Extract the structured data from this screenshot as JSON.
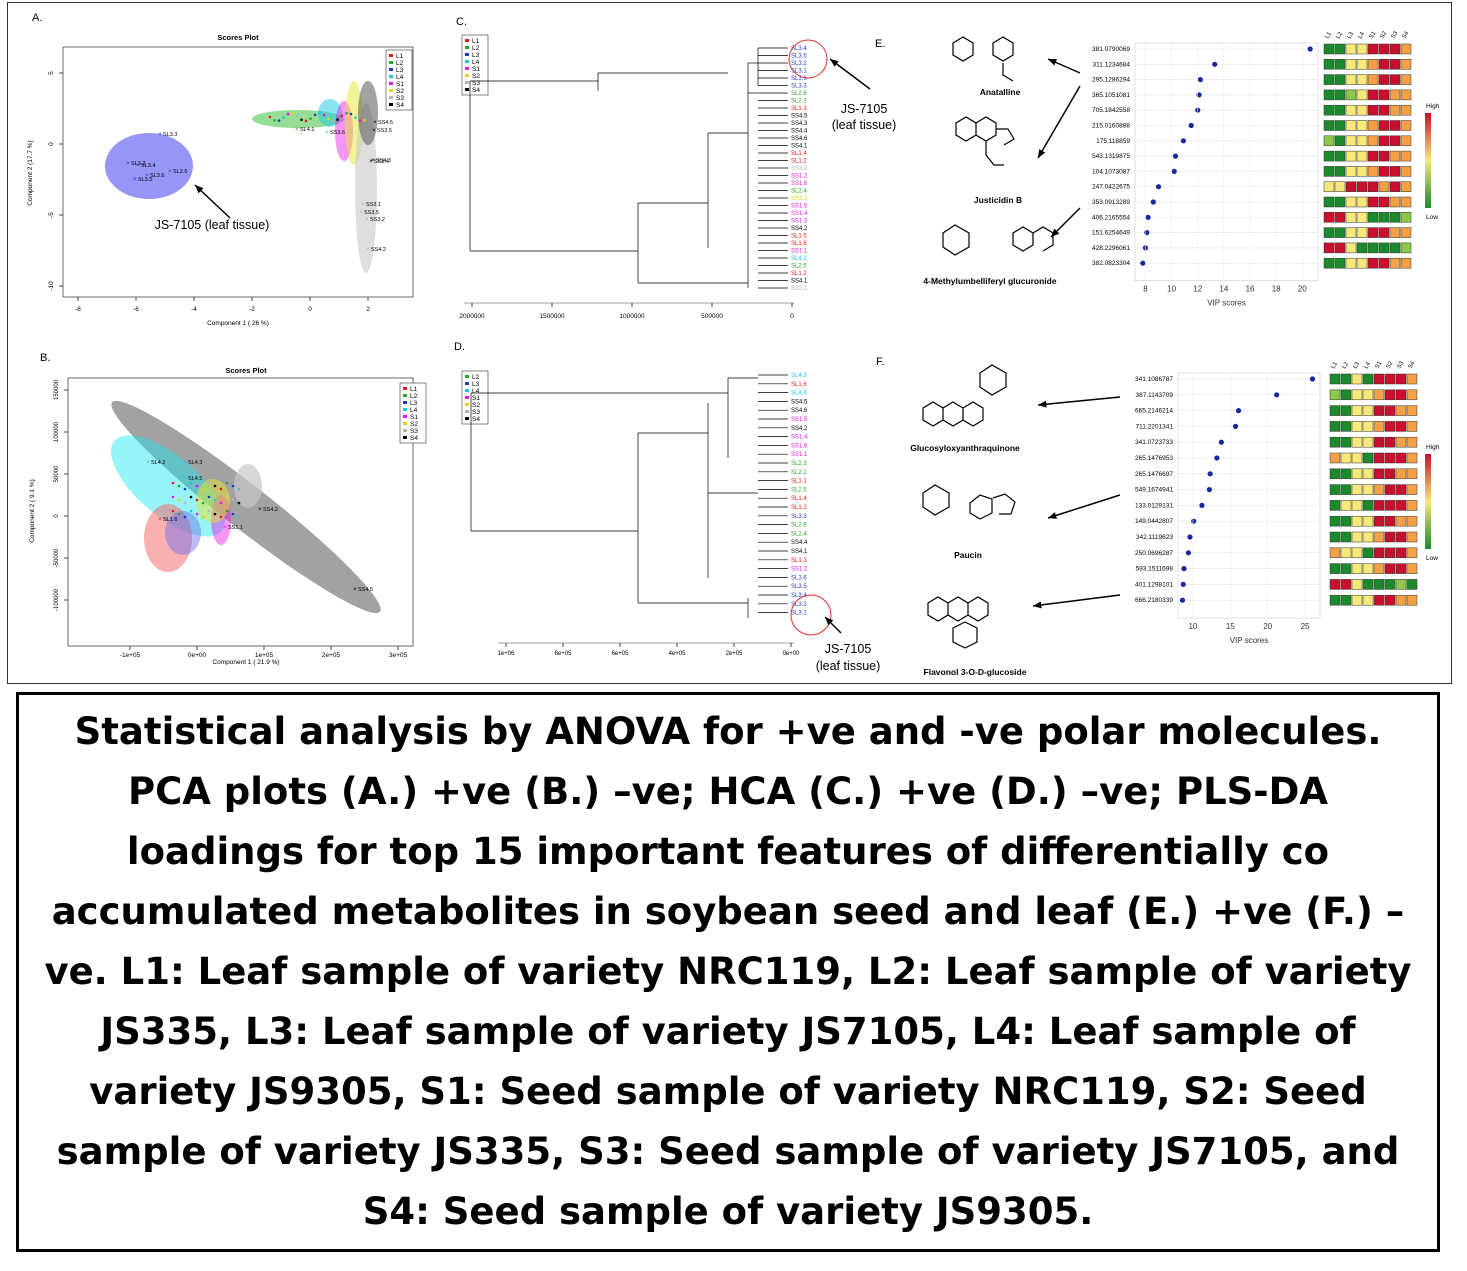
{
  "panels": {
    "A": {
      "label": "A.",
      "title": "Scores Plot",
      "xlabel": "Component 1 ( 26 %)",
      "ylabel": "Component 2 (17.7 %)",
      "x_ticks": [
        "-8",
        "-6",
        "-4",
        "-2",
        "0",
        "2"
      ],
      "y_ticks": [
        "5",
        "0",
        "-5",
        "-10"
      ],
      "legend": [
        "L1",
        "L2",
        "L3",
        "L4",
        "S1",
        "S2",
        "S3",
        "S4"
      ],
      "annotation": "JS-7105 (leaf tissue)",
      "point_labels": [
        "SL3.3",
        "SL3.2",
        "SL3.4",
        "SL3.5",
        "SL3.6",
        "SL2.6",
        "SL4.1",
        "SS3.6",
        "SS3.5",
        "SS3.1",
        "SS3.2",
        "SS4.2",
        "SS4.3",
        "SS4.5",
        "SS2.5",
        "SS3.4"
      ]
    },
    "B": {
      "label": "B.",
      "title": "Scores Plot",
      "xlabel": "Component 1 ( 21.9 %)",
      "ylabel": "Component 2 ( 9.1 %)",
      "x_ticks": [
        "-1e+05",
        "0e+00",
        "1e+05",
        "2e+05",
        "3e+05"
      ],
      "y_ticks": [
        "150000",
        "100000",
        "50000",
        "0",
        "-50000",
        "-100000"
      ],
      "legend": [
        "L1",
        "L2",
        "L3",
        "L4",
        "S1",
        "S2",
        "S3",
        "S4"
      ],
      "point_labels": [
        "SL4.2",
        "SL4.3",
        "SL4.5",
        "SL1.6",
        "SS4.2",
        "SS1.1",
        "SS4.5"
      ]
    },
    "C": {
      "label": "C.",
      "legend": [
        "L1",
        "L2",
        "L3",
        "L4",
        "S1",
        "S2",
        "S3",
        "S4"
      ],
      "x_ticks": [
        "2000000",
        "1500000",
        "1000000",
        "500000",
        "0"
      ],
      "annotation_line1": "JS-7105",
      "annotation_line2": "(leaf tissue)",
      "leaf_labels": [
        "SL3.4",
        "SL3.5",
        "SL3.2",
        "SL3.1",
        "SL3.6",
        "SL3.3",
        "SL2.6",
        "SL2.3",
        "SL1.3",
        "SS4.5",
        "SS4.3",
        "SS4.4",
        "SS4.6",
        "SS4.1",
        "SL1.4",
        "SL1.2",
        "SS3.3",
        "SS1.2",
        "SS1.6",
        "SL2.4",
        "SS2.3",
        "SS1.5",
        "SS1.4",
        "SS1.3",
        "SS4.2",
        "SL1.5",
        "SL1.6",
        "SS1.1",
        "SL4.2",
        "SL2.5",
        "SL1.2",
        "SS4.1",
        "SS3.1"
      ]
    },
    "D": {
      "label": "D.",
      "legend": [
        "L2",
        "L3",
        "L4",
        "S1",
        "S2",
        "S3",
        "S4"
      ],
      "x_ticks": [
        "1e+06",
        "8e+05",
        "6e+05",
        "4e+05",
        "2e+05",
        "0e+00"
      ],
      "annotation_line1": "JS-7105",
      "annotation_line2": "(leaf tissue)",
      "leaf_labels": [
        "SL4.3",
        "SL1.6",
        "SL4.6",
        "SS4.5",
        "SS4.6",
        "SS1.5",
        "SS4.2",
        "SS1.4",
        "SS1.6",
        "SS1.1",
        "SL2.3",
        "SL2.2",
        "SL1.1",
        "SL2.5",
        "SL1.4",
        "SL1.2",
        "SL3.3",
        "SL2.6",
        "SL2.4",
        "SS4.4",
        "SS4.1",
        "SL1.3",
        "SS1.2",
        "SL3.6",
        "SL3.5",
        "SL3.4",
        "SL3.2",
        "SL3.1"
      ]
    },
    "E": {
      "label": "E.",
      "xlabel": "VIP scores",
      "x_ticks": [
        "8",
        "10",
        "12",
        "14",
        "16",
        "18",
        "20"
      ],
      "heat_cols": [
        "L1",
        "L2",
        "L3",
        "L4",
        "S1",
        "S2",
        "S3",
        "S4"
      ],
      "scale_high": "High",
      "scale_low": "Low",
      "compounds": [
        "Anatalline",
        "Justicidin B",
        "4-Methylumbelliferyl glucuronide"
      ]
    },
    "F": {
      "label": "F.",
      "xlabel": "VIP scores",
      "x_ticks": [
        "10",
        "15",
        "20",
        "25"
      ],
      "heat_cols": [
        "L1",
        "L2",
        "L3",
        "L4",
        "S1",
        "S2",
        "S3",
        "S4"
      ],
      "scale_high": "High",
      "scale_low": "Low",
      "compounds": [
        "Glucosyloxyanthraquinone",
        "Paucin",
        "Flavonol 3-O-D-glucoside"
      ]
    }
  },
  "chart_data": [
    {
      "type": "scatter",
      "panel": "E",
      "xlabel": "VIP scores",
      "categories": [
        "381.0790069",
        "311.1234684",
        "295.1286294",
        "365.1051081",
        "705.1842558",
        "215.0160888",
        "175.118859",
        "543.1319875",
        "104.1073087",
        "247.0422675",
        "353.0913289",
        "406.2165554",
        "151.6254649",
        "428.2296061",
        "382.0823304"
      ],
      "values": [
        20.6,
        13.3,
        12.2,
        12.1,
        12.0,
        11.5,
        10.9,
        10.3,
        10.2,
        9.0,
        8.6,
        8.2,
        8.1,
        8.0,
        7.8
      ],
      "xlim": [
        7.2,
        21.2
      ]
    },
    {
      "type": "scatter",
      "panel": "F",
      "xlabel": "VIP scores",
      "categories": [
        "341.1086787",
        "387.1143709",
        "665.2146214",
        "711.2201341",
        "341.0723733",
        "265.1476953",
        "265.1476697",
        "549.1674941",
        "133.0129131",
        "149.0442807",
        "342.1119623",
        "250.0696287",
        "593.1511698",
        "401.1298101",
        "666.2180339"
      ],
      "values": [
        26.0,
        21.2,
        16.1,
        15.7,
        13.8,
        13.2,
        12.3,
        12.2,
        11.2,
        10.1,
        9.6,
        9.4,
        8.8,
        8.7,
        8.6
      ],
      "xlim": [
        8.0,
        27.0
      ]
    }
  ],
  "colors": {
    "L1": "#e41a1c",
    "L2": "#27a827",
    "L3": "#1e3cc8",
    "L4": "#19c8e6",
    "S1": "#e619e6",
    "S2": "#e6d21e",
    "S3": "#b4b4b4",
    "S4": "#000000",
    "heat_high": "#c8102e",
    "heat_mid": "#f7e87a",
    "heat_low": "#1a8a2c",
    "dot": "#1428a0"
  },
  "heatmap": {
    "E": [
      [
        1,
        1,
        3,
        3,
        5,
        5,
        5,
        4
      ],
      [
        1,
        1,
        3,
        3,
        4,
        5,
        5,
        4
      ],
      [
        1,
        1,
        3,
        3,
        4,
        5,
        5,
        4
      ],
      [
        1,
        1,
        2,
        3,
        5,
        5,
        4,
        4
      ],
      [
        1,
        1,
        3,
        3,
        5,
        5,
        4,
        4
      ],
      [
        1,
        1,
        3,
        3,
        4,
        5,
        5,
        4
      ],
      [
        2,
        1,
        3,
        3,
        4,
        5,
        5,
        4
      ],
      [
        1,
        1,
        3,
        3,
        5,
        5,
        4,
        4
      ],
      [
        1,
        1,
        3,
        3,
        4,
        5,
        5,
        4
      ],
      [
        3,
        3,
        5,
        5,
        5,
        4,
        5,
        4
      ],
      [
        1,
        1,
        3,
        3,
        5,
        5,
        4,
        4
      ],
      [
        5,
        5,
        3,
        3,
        1,
        1,
        1,
        2
      ],
      [
        1,
        1,
        3,
        3,
        5,
        5,
        4,
        4
      ],
      [
        5,
        5,
        3,
        1,
        1,
        1,
        1,
        2
      ],
      [
        1,
        1,
        3,
        3,
        5,
        5,
        4,
        4
      ]
    ],
    "F": [
      [
        1,
        1,
        3,
        1,
        5,
        5,
        5,
        4
      ],
      [
        2,
        1,
        3,
        3,
        4,
        5,
        5,
        4
      ],
      [
        1,
        1,
        3,
        3,
        5,
        5,
        4,
        4
      ],
      [
        1,
        1,
        3,
        3,
        4,
        5,
        5,
        4
      ],
      [
        1,
        1,
        3,
        3,
        5,
        5,
        4,
        4
      ],
      [
        4,
        3,
        3,
        1,
        5,
        5,
        5,
        4
      ],
      [
        1,
        1,
        3,
        3,
        5,
        5,
        4,
        4
      ],
      [
        1,
        1,
        3,
        3,
        4,
        5,
        5,
        4
      ],
      [
        1,
        3,
        3,
        1,
        5,
        5,
        5,
        4
      ],
      [
        1,
        1,
        3,
        3,
        5,
        5,
        4,
        4
      ],
      [
        1,
        1,
        3,
        3,
        4,
        5,
        5,
        4
      ],
      [
        4,
        3,
        3,
        1,
        5,
        5,
        5,
        4
      ],
      [
        1,
        1,
        3,
        3,
        4,
        5,
        5,
        4
      ],
      [
        5,
        5,
        3,
        1,
        1,
        1,
        2,
        1
      ],
      [
        1,
        1,
        3,
        3,
        5,
        5,
        4,
        4
      ]
    ]
  },
  "caption": "Statistical analysis by ANOVA for +ve and -ve polar molecules. PCA plots (A.) +ve (B.) –ve; HCA (C.) +ve (D.) –ve; PLS-DA loadings for top 15 important features of differentially co accumulated metabolites in soybean seed and leaf (E.) +ve (F.) –ve. L1: Leaf sample of variety NRC119, L2: Leaf sample of variety JS335, L3: Leaf sample of variety JS7105, L4: Leaf sample of variety JS9305, S1: Seed sample of variety NRC119, S2: Seed sample of variety JS335, S3: Seed sample of variety JS7105, and S4: Seed sample of variety JS9305."
}
